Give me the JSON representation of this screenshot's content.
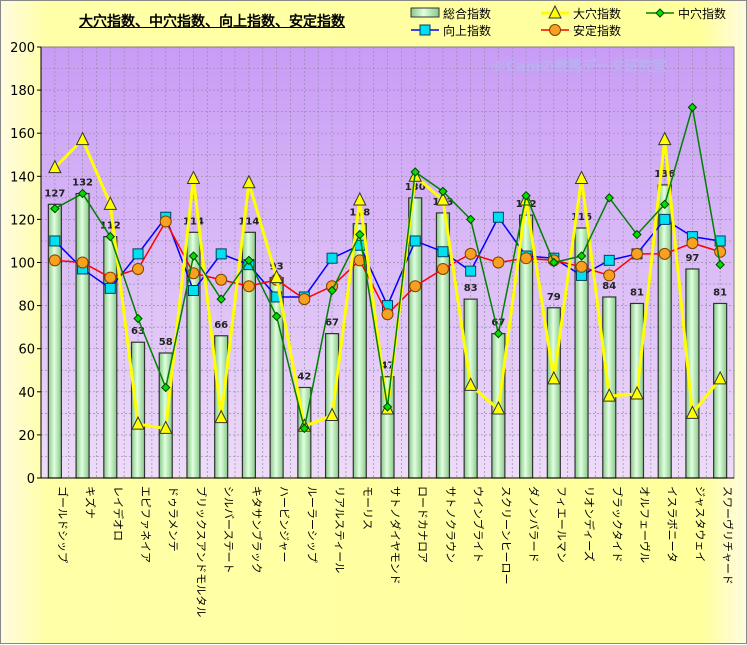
{
  "chart_data": {
    "type": "bar+line",
    "title": "大穴指数、中穴指数、向上指数、安定指数",
    "watermark": "©Caniの競馬データ研究室",
    "ylim": [
      0,
      200
    ],
    "yticks": [
      0,
      20,
      40,
      60,
      80,
      100,
      120,
      140,
      160,
      180,
      200
    ],
    "grid": true,
    "legend_placement": "top-right",
    "categories": [
      "ゴールドシップ",
      "キズナ",
      "レイデオロ",
      "エピファネイア",
      "ドゥラメンテ",
      "ブリックスアンドモルタル",
      "シルバーステート",
      "キタサンブラック",
      "ハービンジャー",
      "ルーラーシップ",
      "リアルスティール",
      "モーリス",
      "サトノダイヤモンド",
      "ロードカナロア",
      "サトノクラウン",
      "ウインブライト",
      "スクリーンヒーロー",
      "ダノンバラード",
      "フィエールマン",
      "リオンディーズ",
      "ブラックタイド",
      "オルフェーヴル",
      "イスラボニータ",
      "ジャスタウェイ",
      "スワーヴリチャード"
    ],
    "series": [
      {
        "name": "総合指数",
        "kind": "bar",
        "color": "#c8f0c8",
        "values": [
          127,
          132,
          112,
          63,
          58,
          114,
          66,
          114,
          93,
          42,
          67,
          118,
          47,
          130,
          123,
          83,
          67,
          122,
          79,
          116,
          84,
          81,
          136,
          97,
          81
        ]
      },
      {
        "name": "大穴指数",
        "kind": "line",
        "marker": "triangle",
        "color": "#ffff00",
        "values": [
          144,
          157,
          127,
          25,
          23,
          139,
          28,
          137,
          93,
          24,
          29,
          129,
          32,
          140,
          129,
          43,
          32,
          129,
          46,
          139,
          38,
          39,
          157,
          30,
          46
        ]
      },
      {
        "name": "中穴指数",
        "kind": "line",
        "marker": "diamond",
        "color": "#008000",
        "values": [
          125,
          132,
          112,
          74,
          42,
          103,
          83,
          101,
          75,
          23,
          87,
          113,
          33,
          142,
          133,
          120,
          67,
          131,
          100,
          103,
          130,
          113,
          127,
          172,
          99
        ]
      },
      {
        "name": "向上指数",
        "kind": "line",
        "marker": "square",
        "color": "#0000ff",
        "values": [
          110,
          97,
          88,
          104,
          121,
          87,
          104,
          99,
          84,
          84,
          102,
          108,
          80,
          110,
          105,
          96,
          121,
          103,
          102,
          94,
          101,
          104,
          120,
          112,
          110
        ]
      },
      {
        "name": "安定指数",
        "kind": "line",
        "marker": "circle",
        "color": "#ff0000",
        "values": [
          101,
          100,
          93,
          97,
          119,
          95,
          92,
          89,
          92,
          83,
          89,
          101,
          76,
          89,
          97,
          104,
          100,
          102,
          101,
          98,
          94,
          104,
          104,
          109,
          105
        ]
      }
    ]
  }
}
